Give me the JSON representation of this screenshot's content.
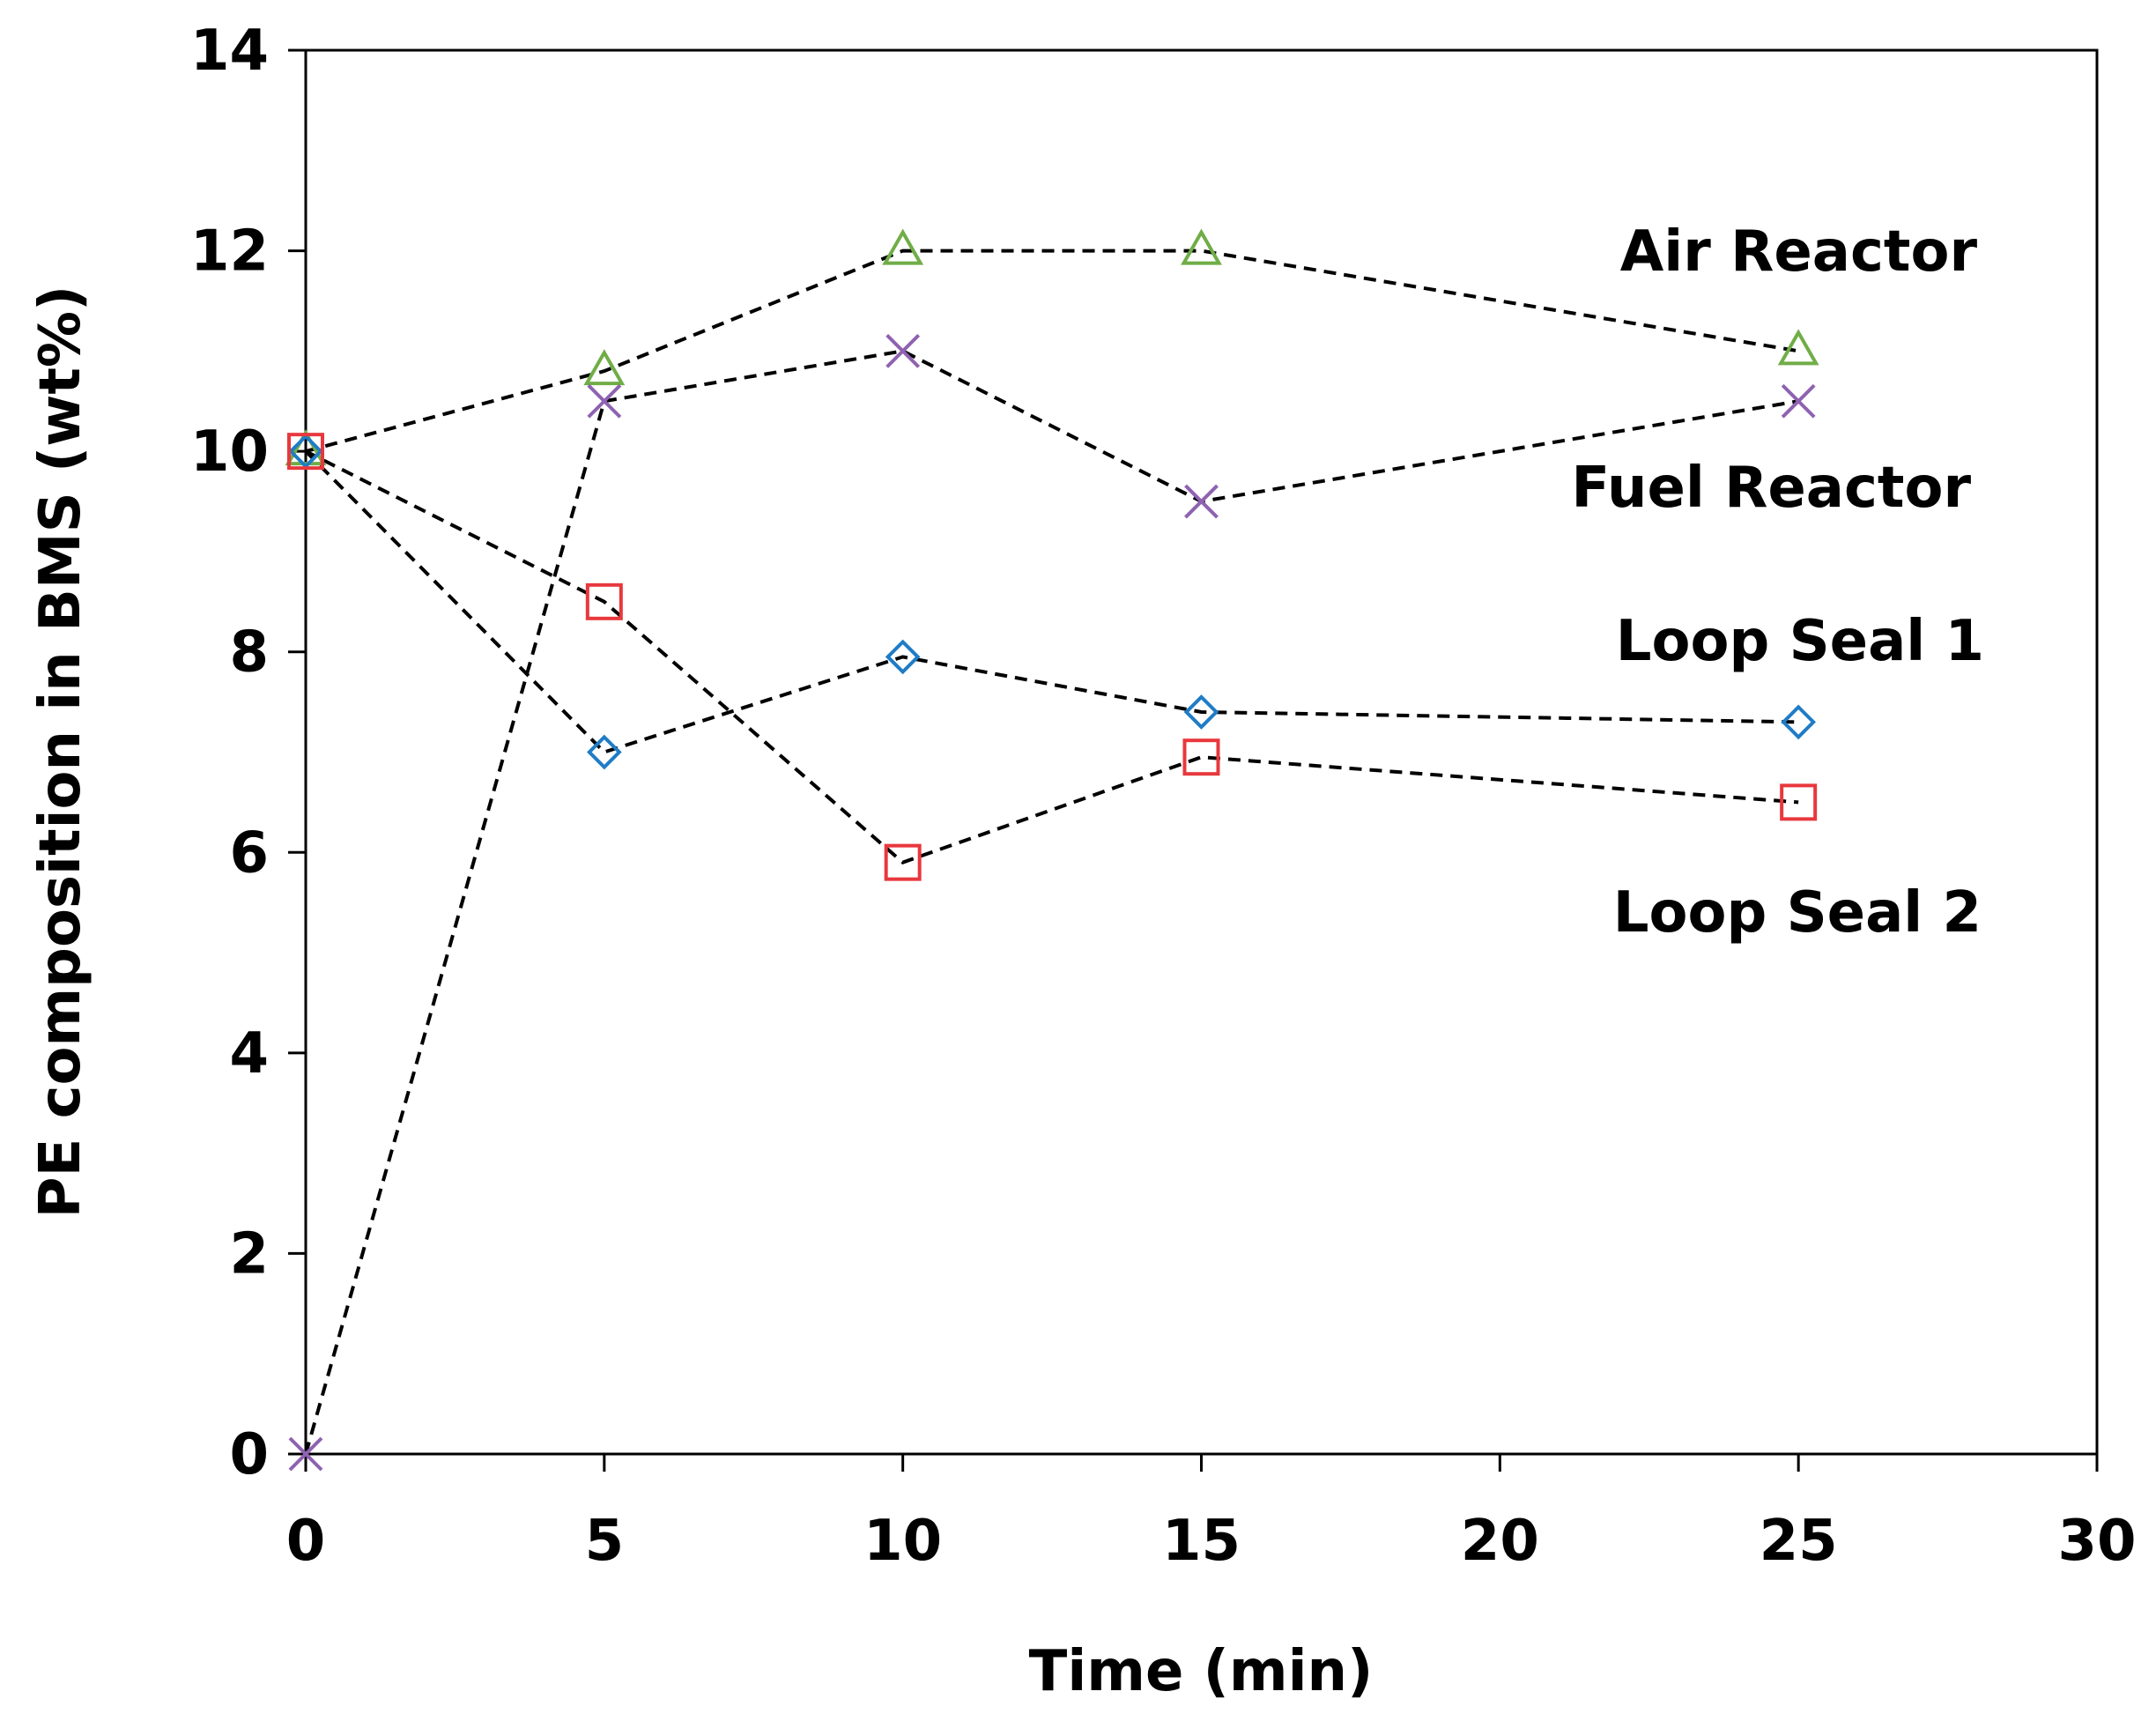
{
  "chart_data": {
    "type": "scatter",
    "title": "",
    "xlabel": "Time (min)",
    "ylabel": "PE  composition in BMS (wt%)",
    "xlim": [
      0,
      30
    ],
    "ylim": [
      0,
      14
    ],
    "xticks": [
      0,
      5,
      10,
      15,
      20,
      25,
      30
    ],
    "yticks": [
      0,
      2,
      4,
      6,
      8,
      10,
      12,
      14
    ],
    "grid": false,
    "legend": "direct labels at right",
    "x": [
      0,
      5,
      10,
      15,
      25
    ],
    "series": [
      {
        "name": "Air Reactor",
        "marker": "triangle",
        "color": "#70AD47",
        "values": [
          10,
          10.8,
          12,
          12,
          11
        ]
      },
      {
        "name": "Fuel Reactor",
        "marker": "x",
        "color": "#8E62B1",
        "values": [
          0,
          10.5,
          11,
          9.5,
          10.5
        ]
      },
      {
        "name": "Loop Seal 1",
        "marker": "diamond",
        "color": "#1F7CC6",
        "values": [
          10,
          7,
          7.95,
          7.4,
          7.3
        ]
      },
      {
        "name": "Loop Seal 2",
        "marker": "square",
        "color": "#E8383D",
        "values": [
          10,
          8.5,
          5.9,
          6.95,
          6.5
        ]
      }
    ]
  }
}
